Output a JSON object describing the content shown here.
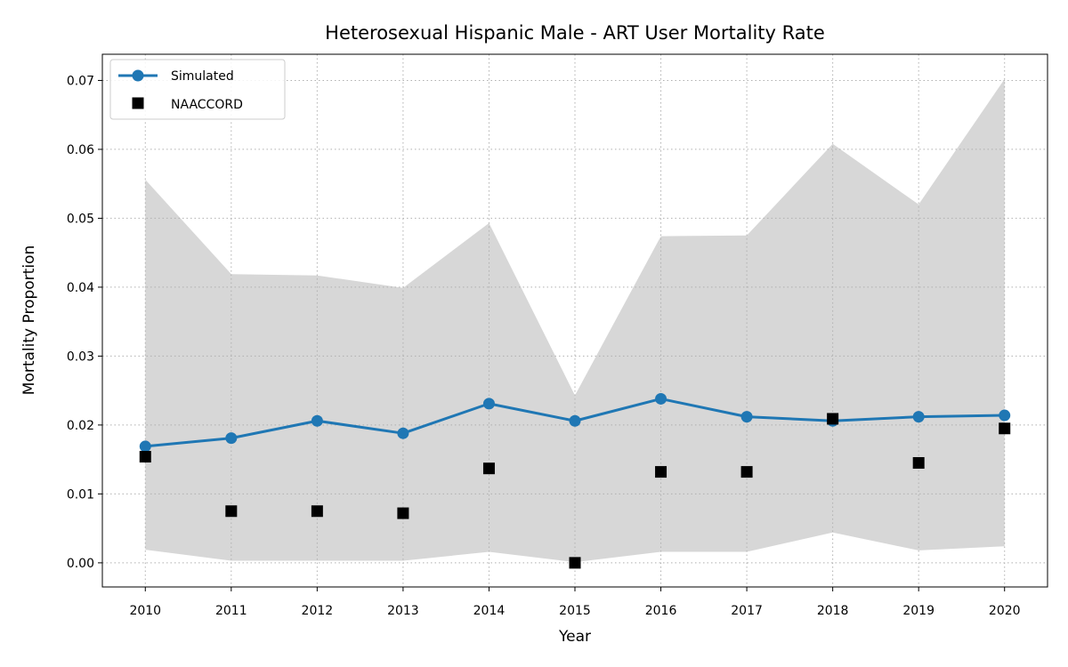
{
  "chart_data": {
    "type": "line",
    "title": "Heterosexual Hispanic Male - ART User Mortality Rate",
    "xlabel": "Year",
    "ylabel": "Mortality Proportion",
    "x": [
      2010,
      2011,
      2012,
      2013,
      2014,
      2015,
      2016,
      2017,
      2018,
      2019,
      2020
    ],
    "xlim": [
      2009.5,
      2020.5
    ],
    "ylim": [
      -0.0035,
      0.0738
    ],
    "yticks": [
      0.0,
      0.01,
      0.02,
      0.03,
      0.04,
      0.05,
      0.06,
      0.07
    ],
    "ytick_labels": [
      "0.00",
      "0.01",
      "0.02",
      "0.03",
      "0.04",
      "0.05",
      "0.06",
      "0.07"
    ],
    "xtick_labels": [
      "2010",
      "2011",
      "2012",
      "2013",
      "2014",
      "2015",
      "2016",
      "2017",
      "2018",
      "2019",
      "2020"
    ],
    "grid": true,
    "legend_position": "top-left",
    "series": [
      {
        "name": "Simulated",
        "kind": "line-marker",
        "color": "#1f77b4",
        "values": [
          0.0169,
          0.0181,
          0.0206,
          0.0188,
          0.0231,
          0.0206,
          0.0238,
          0.0212,
          0.0206,
          0.0212,
          0.0214
        ]
      },
      {
        "name": "NAACCORD",
        "kind": "square-marker",
        "color": "#000000",
        "values": [
          0.0154,
          0.0075,
          0.0075,
          0.0072,
          0.0137,
          0.0,
          0.0132,
          0.0132,
          0.0209,
          0.0145,
          0.0195
        ]
      }
    ],
    "band": {
      "color": "#d7d7d7",
      "lower": [
        0.0019,
        0.0003,
        0.0003,
        0.0003,
        0.0016,
        0.0001,
        0.0016,
        0.0016,
        0.0044,
        0.0018,
        0.0024
      ],
      "upper": [
        0.0556,
        0.0419,
        0.0417,
        0.0399,
        0.0493,
        0.0243,
        0.0474,
        0.0475,
        0.0608,
        0.052,
        0.0702
      ]
    }
  }
}
